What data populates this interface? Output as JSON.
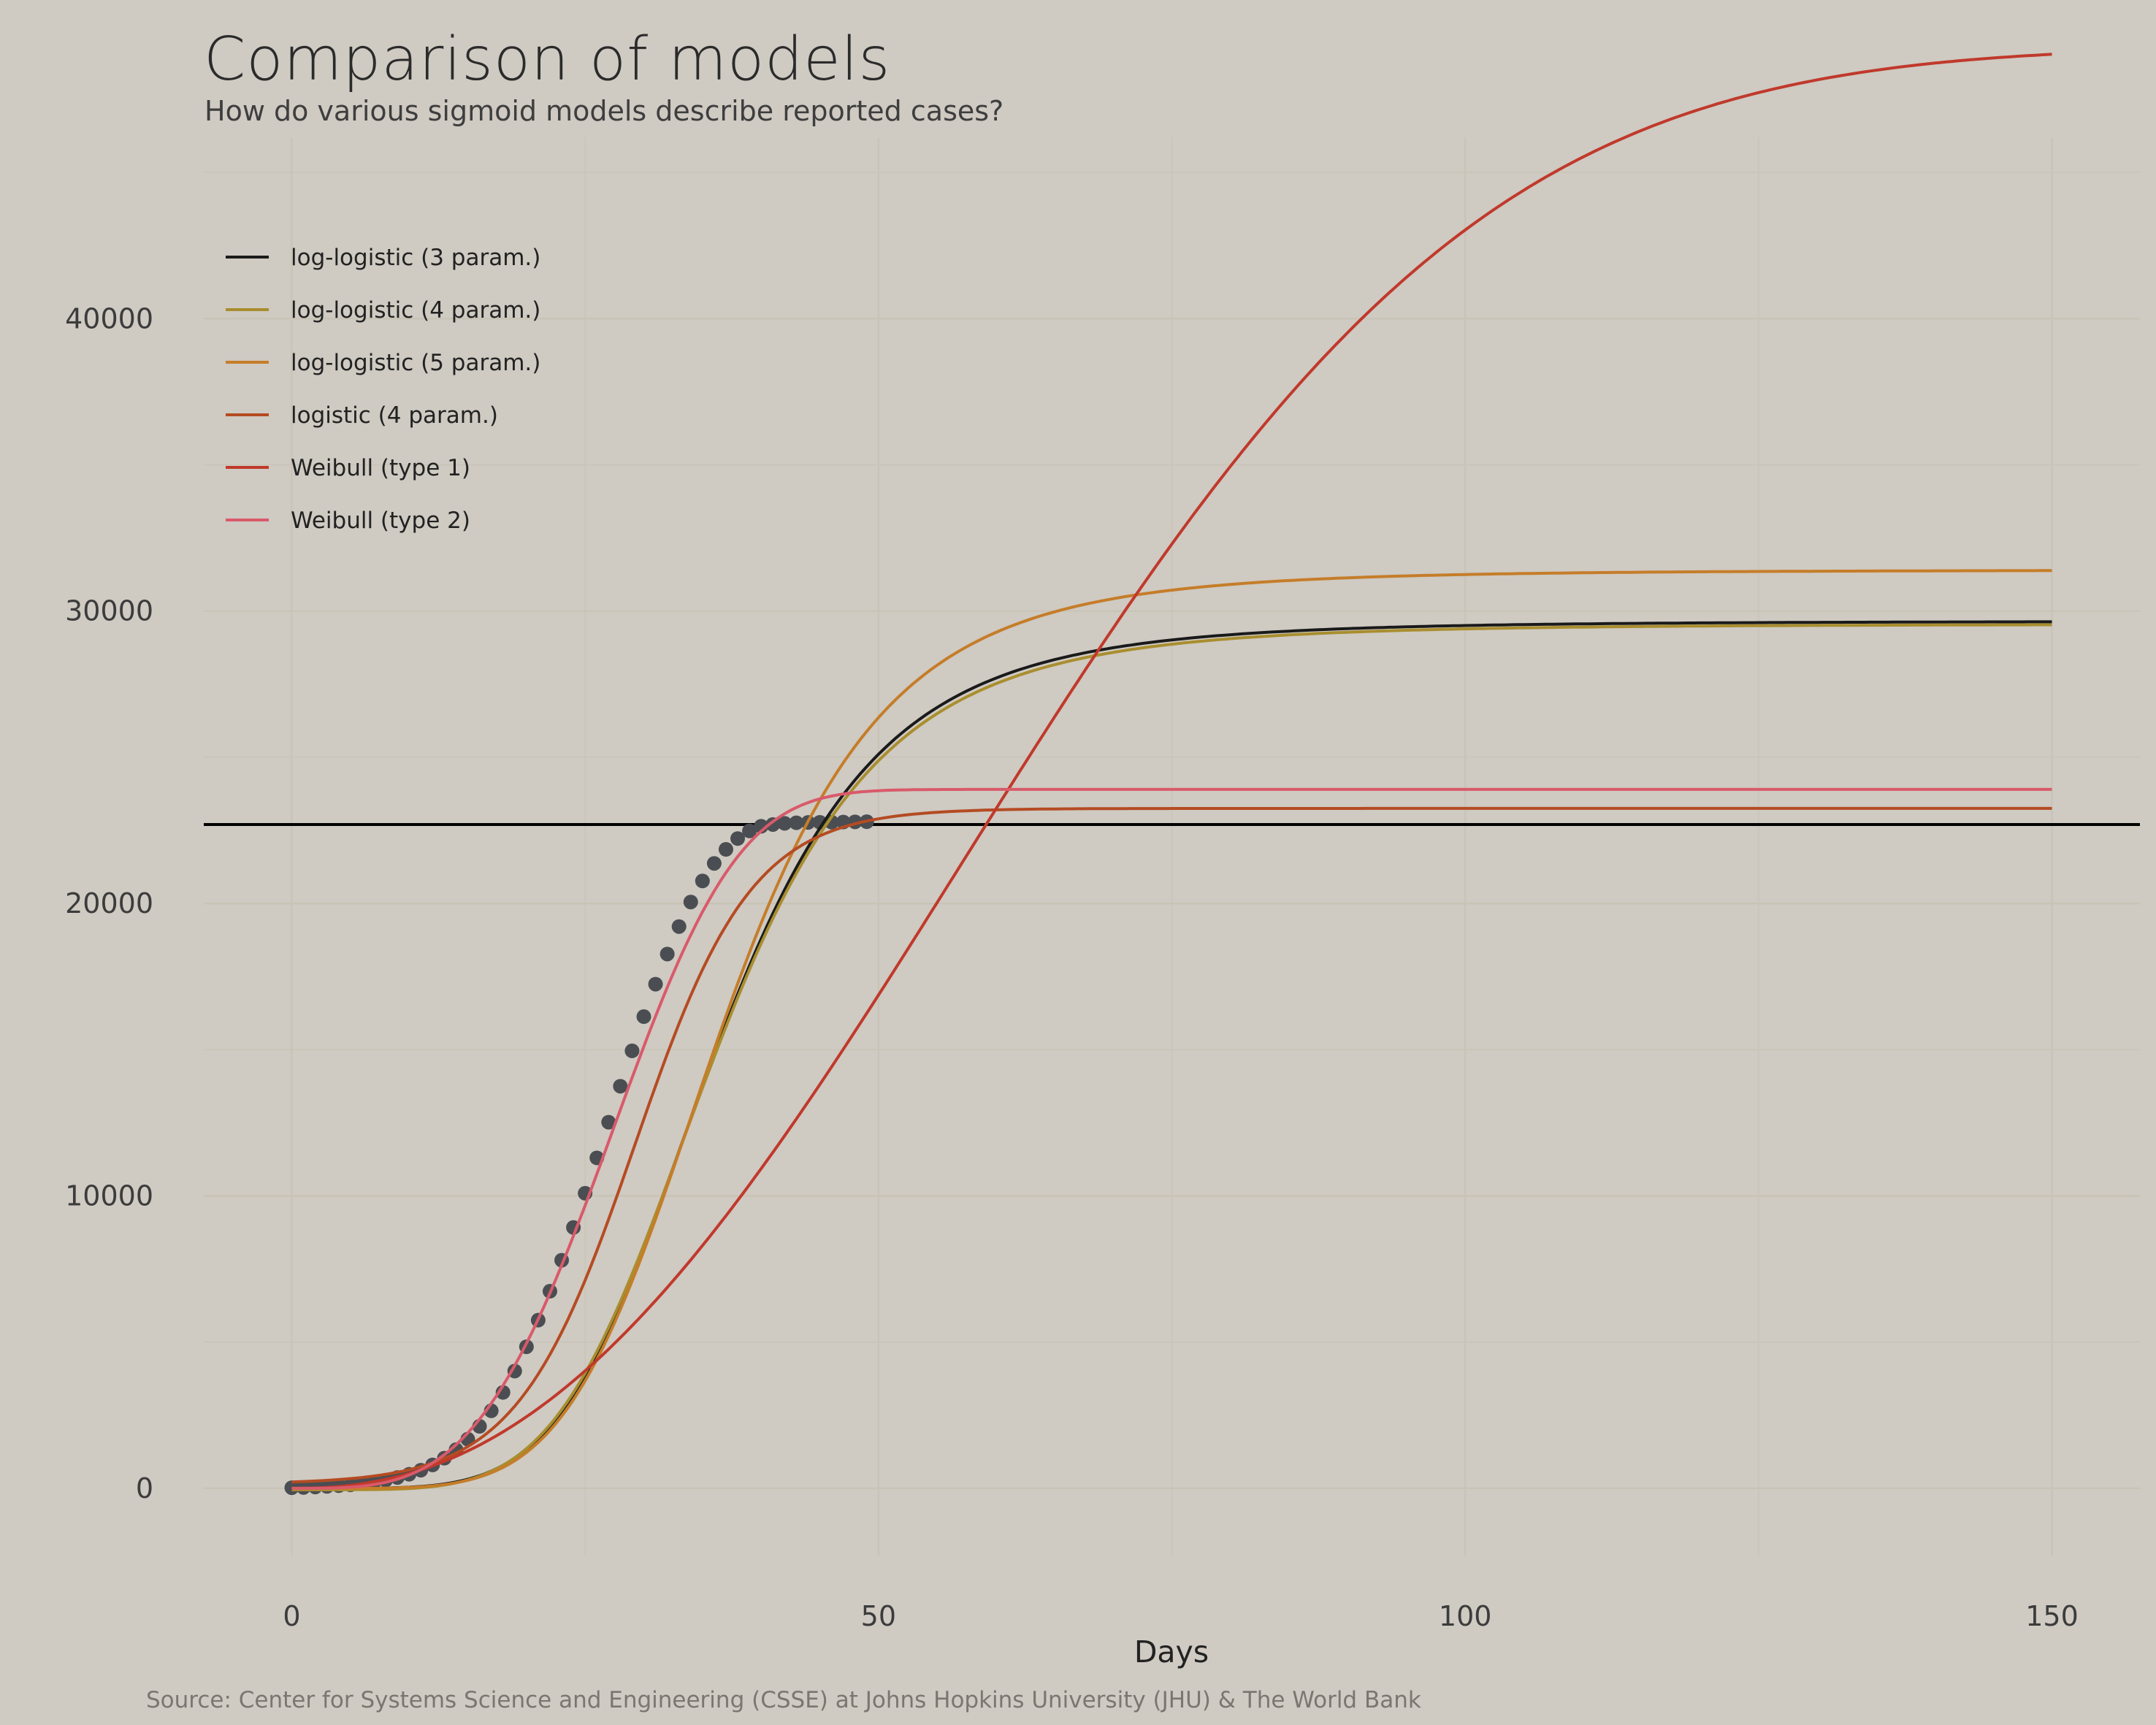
{
  "title": "Comparison of models",
  "subtitle": "How do various sigmoid models describe reported cases?",
  "caption": "Source: Center for Systems Science and Engineering (CSSE) at Johns Hopkins University (JHU) & The World Bank",
  "colors": {
    "background": "#CFCAC2",
    "grid": "#C8C3B4",
    "points": "#4A4E52",
    "hline": "#000000"
  },
  "chart_data": {
    "type": "line",
    "title": "Comparison of models",
    "subtitle": "How do various sigmoid models describe reported cases?",
    "xlabel": "Days",
    "ylabel": "",
    "xlim": [
      -7.5,
      157.5
    ],
    "ylim": [
      -2300,
      46200
    ],
    "x_ticks": [
      0,
      50,
      100,
      150
    ],
    "y_ticks": [
      0,
      10000,
      20000,
      30000,
      40000
    ],
    "grid": true,
    "legend_position": "top-left",
    "hline": 22700,
    "observed": {
      "days": [
        0,
        1,
        2,
        3,
        4,
        5,
        6,
        7,
        8,
        9,
        10,
        11,
        12,
        13,
        14,
        15,
        16,
        17,
        18,
        19,
        20,
        21,
        22,
        23,
        24,
        25,
        26,
        27,
        28,
        29,
        30,
        31,
        32,
        33,
        34,
        35,
        36,
        37,
        38,
        39,
        40,
        41,
        42,
        43,
        44,
        45,
        46,
        47,
        48,
        49
      ],
      "cases": [
        20,
        30,
        45,
        65,
        90,
        120,
        160,
        210,
        280,
        370,
        480,
        620,
        800,
        1030,
        1320,
        1680,
        2120,
        2650,
        3280,
        4010,
        4840,
        5750,
        6740,
        7800,
        8920,
        10090,
        11300,
        12520,
        13750,
        14960,
        16130,
        17240,
        18270,
        19210,
        20050,
        20770,
        21370,
        21850,
        22220,
        22480,
        22640,
        22700,
        22740,
        22760,
        22770,
        22775,
        22780,
        22785,
        22790,
        22795
      ]
    },
    "series": [
      {
        "name": "log-logistic (3 param.)",
        "color": "#1A1A1A",
        "model": "ll",
        "params": {
          "c": 0,
          "d": 29650,
          "e": 36,
          "b": 5.2
        }
      },
      {
        "name": "log-logistic (4 param.)",
        "color": "#A98E2F",
        "model": "ll",
        "params": {
          "c": -50,
          "d": 29550,
          "e": 36,
          "b": 5.1
        }
      },
      {
        "name": "log-logistic (5 param.)",
        "color": "#C57D29",
        "model": "ll5",
        "params": {
          "c": 0,
          "d": 31400,
          "e": 36.6,
          "b": 5.3,
          "f": 1
        }
      },
      {
        "name": "logistic (4 param.)",
        "color": "#B54B22",
        "model": "logistic",
        "params": {
          "c": 150,
          "d": 23250,
          "e": 29.2,
          "b": 0.2
        }
      },
      {
        "name": "Weibull (type 1)",
        "color": "#C0392B",
        "model": "w1",
        "params": {
          "c": 0,
          "d": 49300,
          "e": 73,
          "b": 2.3
        }
      },
      {
        "name": "Weibull (type 2)",
        "color": "#D95A6A",
        "model": "w2",
        "params": {
          "c": 0,
          "d": 23900,
          "e": 30,
          "b": 3.6
        }
      }
    ]
  }
}
